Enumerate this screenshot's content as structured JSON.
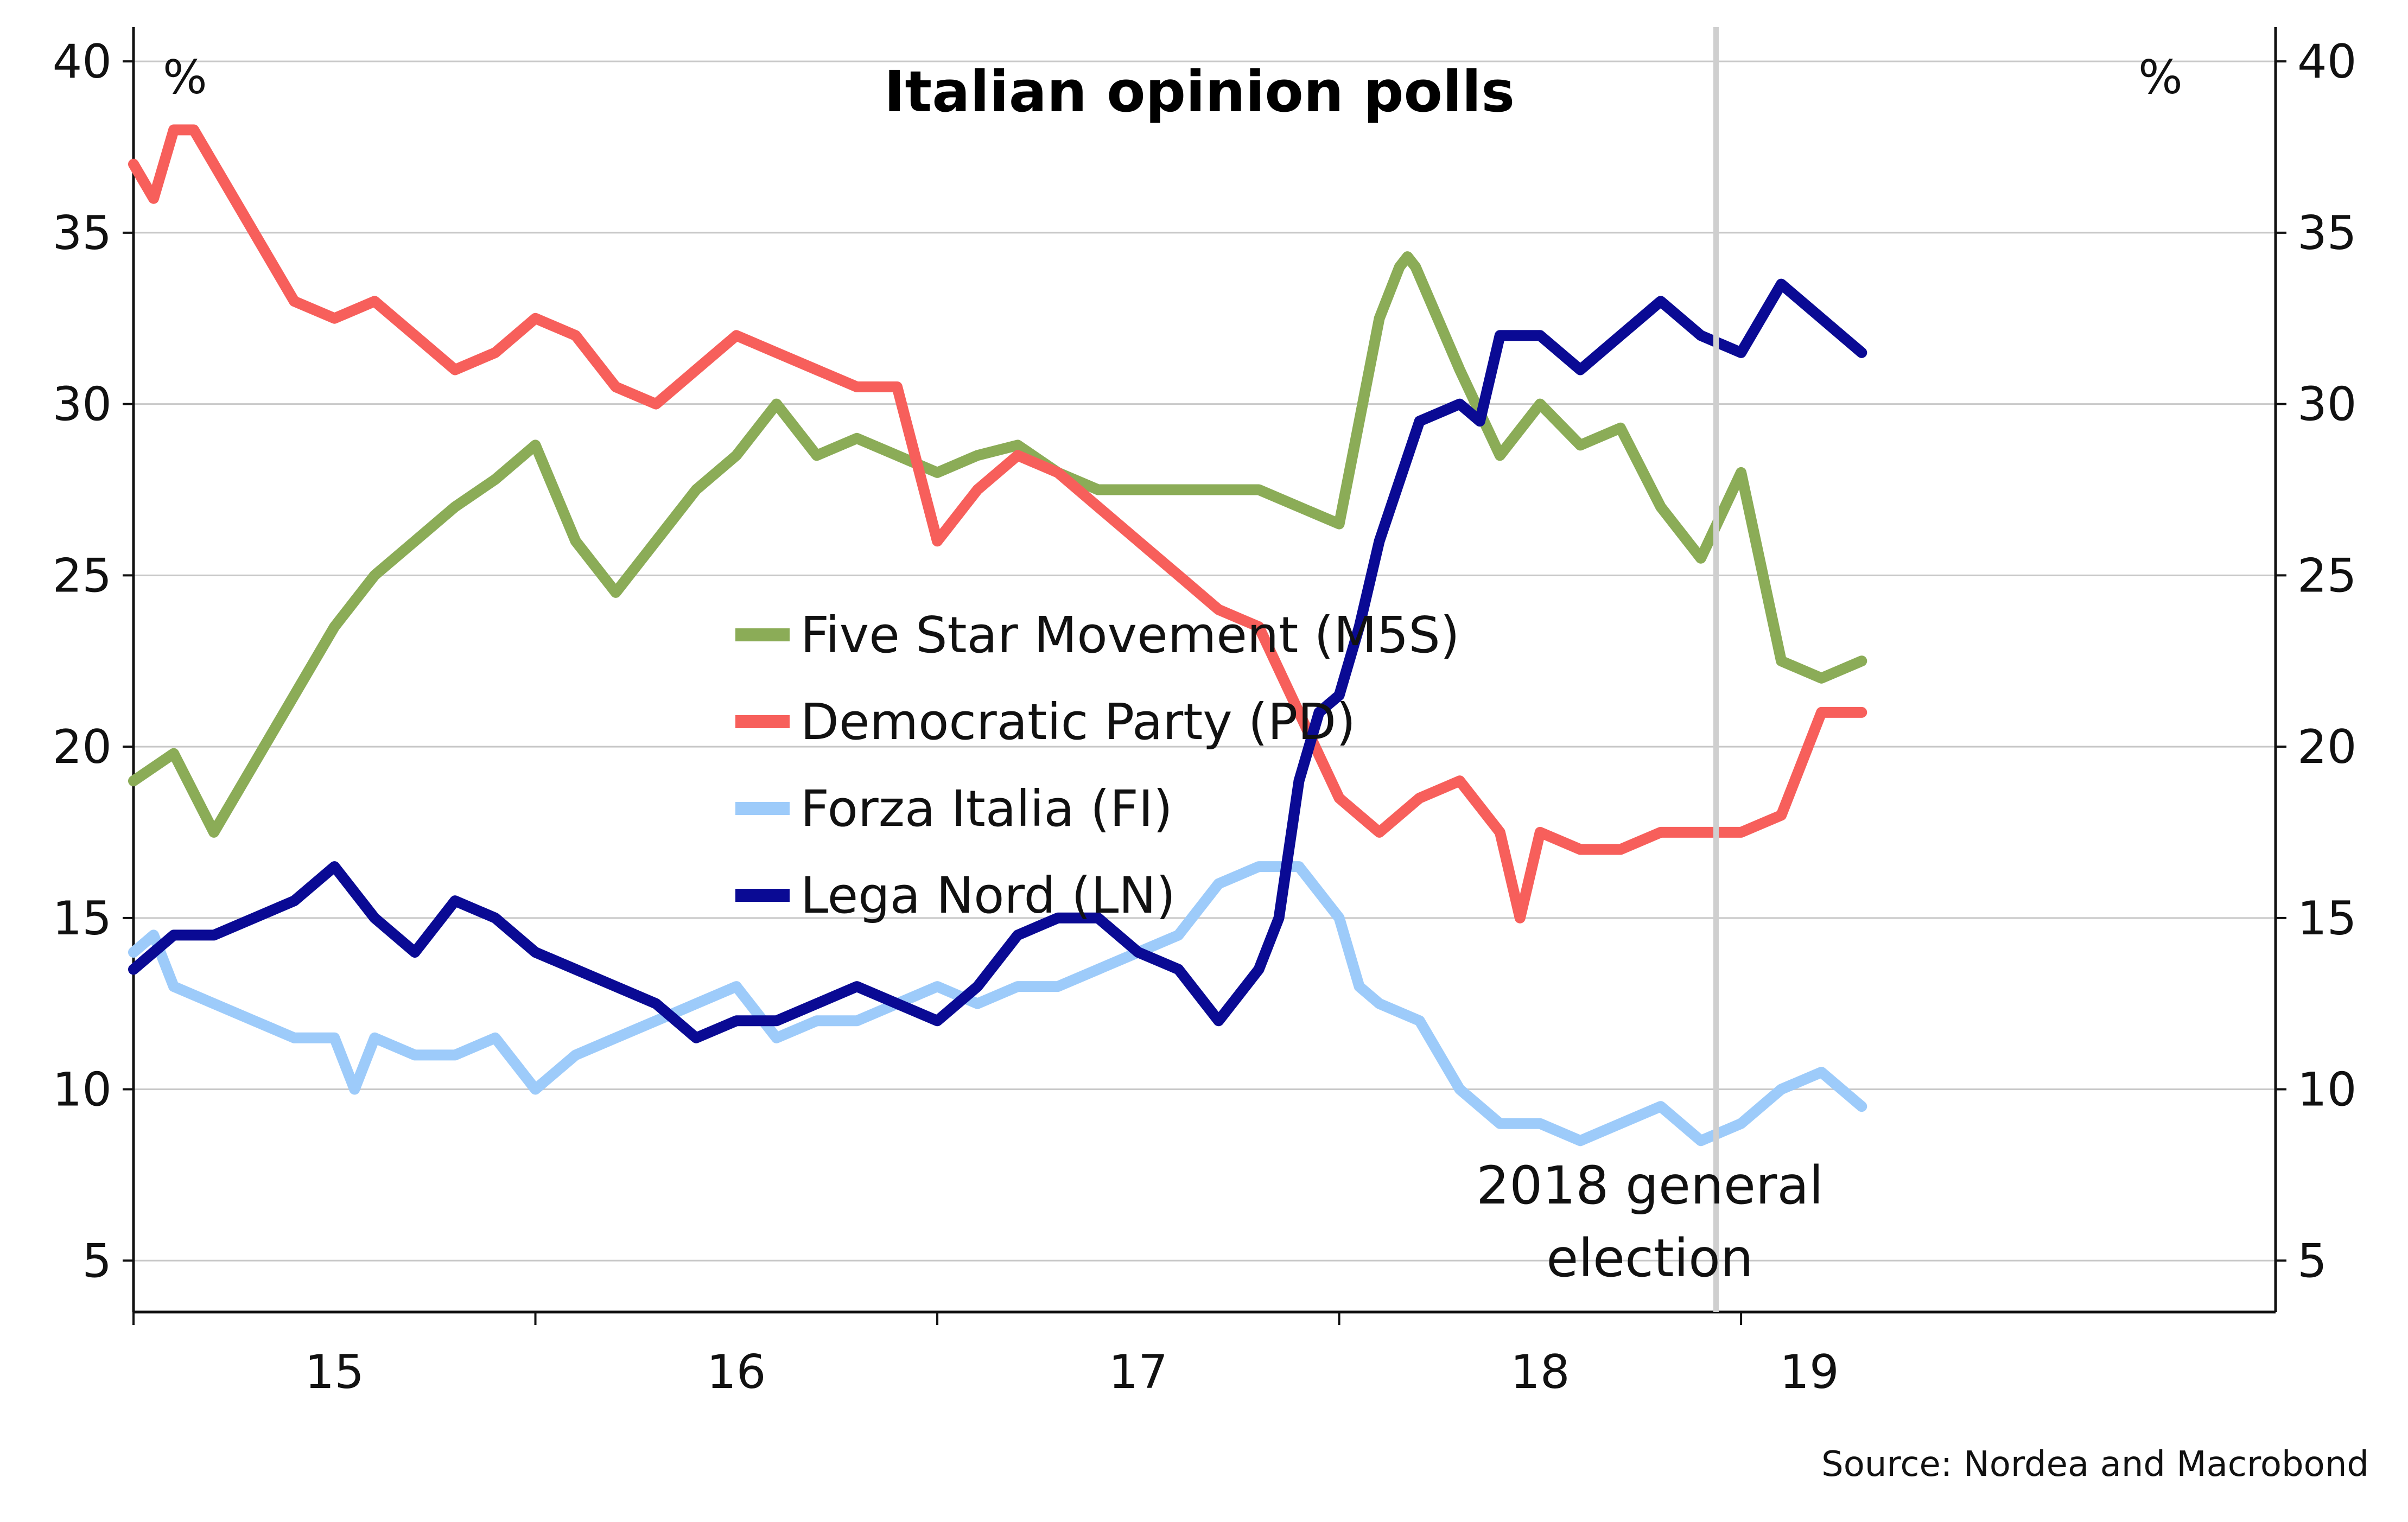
{
  "chart_data": {
    "type": "line",
    "title": "Italian opinion polls",
    "source": "Source: Nordea and Macrobond",
    "y_unit_left": "%",
    "y_unit_right": "%",
    "ylim": [
      3.5,
      41
    ],
    "yticks": [
      5,
      10,
      15,
      20,
      25,
      30,
      35,
      40
    ],
    "xlim": [
      2014.0,
      2019.33
    ],
    "x_major_ticks": [
      2014.0,
      2015.0,
      2016.0,
      2017.0,
      2018.0
    ],
    "x_tick_labels": [
      {
        "label": "15",
        "x": 2014.5
      },
      {
        "label": "16",
        "x": 2015.5
      },
      {
        "label": "17",
        "x": 2016.5
      },
      {
        "label": "18",
        "x": 2017.5
      },
      {
        "label": "19",
        "x": 2018.17
      }
    ],
    "grid": true,
    "legend_position": "center",
    "annotation": {
      "lines": [
        "2018 general",
        "election"
      ],
      "x": 2018.17
    },
    "series": [
      {
        "name": "Five Star Movement (M5S)",
        "color": "#8bac57",
        "x": [
          2014.0,
          2014.1,
          2014.2,
          2014.3,
          2014.4,
          2014.5,
          2014.6,
          2014.7,
          2014.8,
          2014.9,
          2015.0,
          2015.1,
          2015.2,
          2015.3,
          2015.4,
          2015.5,
          2015.6,
          2015.7,
          2015.8,
          2015.9,
          2016.0,
          2016.1,
          2016.2,
          2016.3,
          2016.4,
          2016.5,
          2016.6,
          2016.7,
          2016.8,
          2016.9,
          2017.0,
          2017.1,
          2017.15,
          2017.17,
          2017.19,
          2017.3,
          2017.4,
          2017.5,
          2017.6,
          2017.7,
          2017.8,
          2017.9,
          2018.0,
          2018.1,
          2018.2,
          2018.3
        ],
        "values": [
          19,
          19.8,
          17.5,
          19.5,
          21.5,
          23.5,
          25,
          26,
          27,
          27.8,
          28.8,
          26,
          24.5,
          26,
          27.5,
          28.5,
          30,
          28.5,
          29,
          28.5,
          28,
          28.5,
          28.8,
          28,
          27.5,
          27.5,
          27.5,
          27.5,
          27.5,
          27,
          26.5,
          32.5,
          34,
          34.3,
          34,
          31,
          28.5,
          30,
          28.8,
          29.3,
          27,
          25.5,
          28,
          22.5,
          22,
          22.5
        ]
      },
      {
        "name": "Democratic Party (PD)",
        "color": "#f75f5b",
        "x": [
          2014.0,
          2014.05,
          2014.1,
          2014.15,
          2014.2,
          2014.3,
          2014.4,
          2014.5,
          2014.6,
          2014.7,
          2014.8,
          2014.9,
          2015.0,
          2015.1,
          2015.2,
          2015.3,
          2015.4,
          2015.5,
          2015.6,
          2015.7,
          2015.8,
          2015.9,
          2016.0,
          2016.1,
          2016.2,
          2016.3,
          2016.4,
          2016.5,
          2016.6,
          2016.7,
          2016.8,
          2016.9,
          2017.0,
          2017.05,
          2017.1,
          2017.2,
          2017.3,
          2017.4,
          2017.45,
          2017.5,
          2017.6,
          2017.7,
          2017.8,
          2017.9,
          2018.0,
          2018.1,
          2018.2,
          2018.3
        ],
        "values": [
          37,
          36,
          38,
          38,
          37,
          35,
          33,
          32.5,
          33,
          32,
          31,
          31.5,
          32.5,
          32,
          30.5,
          30,
          31,
          32,
          31.5,
          31,
          30.5,
          30.5,
          26,
          27.5,
          28.5,
          28,
          27,
          26,
          25,
          24,
          23.5,
          21,
          18.5,
          18,
          17.5,
          18.5,
          19,
          17.5,
          15,
          17.5,
          17,
          17,
          17.5,
          17.5,
          17.5,
          18,
          21,
          21
        ]
      },
      {
        "name": "Forza Italia (FI)",
        "color": "#9dcbfa",
        "x": [
          2014.0,
          2014.05,
          2014.1,
          2014.2,
          2014.3,
          2014.4,
          2014.5,
          2014.55,
          2014.6,
          2014.7,
          2014.8,
          2014.9,
          2015.0,
          2015.1,
          2015.2,
          2015.3,
          2015.4,
          2015.5,
          2015.6,
          2015.7,
          2015.8,
          2015.9,
          2016.0,
          2016.1,
          2016.2,
          2016.3,
          2016.4,
          2016.5,
          2016.6,
          2016.7,
          2016.8,
          2016.9,
          2017.0,
          2017.05,
          2017.1,
          2017.2,
          2017.3,
          2017.4,
          2017.5,
          2017.6,
          2017.7,
          2017.8,
          2017.9,
          2018.0,
          2018.1,
          2018.2,
          2018.3
        ],
        "values": [
          14,
          14.5,
          13,
          12.5,
          12,
          11.5,
          11.5,
          10,
          11.5,
          11,
          11,
          11.5,
          10,
          11,
          11.5,
          12,
          12.5,
          13,
          11.5,
          12,
          12,
          12.5,
          13,
          12.5,
          13,
          13,
          13.5,
          14,
          14.5,
          16,
          16.5,
          16.5,
          15,
          13,
          12.5,
          12,
          10,
          9,
          9,
          8.5,
          9,
          9.5,
          8.5,
          9,
          10,
          10.5,
          9.5
        ]
      },
      {
        "name": "Lega Nord (LN)",
        "color": "#0a0a94",
        "x": [
          2014.0,
          2014.1,
          2014.2,
          2014.3,
          2014.4,
          2014.5,
          2014.6,
          2014.7,
          2014.8,
          2014.9,
          2015.0,
          2015.1,
          2015.2,
          2015.3,
          2015.4,
          2015.5,
          2015.6,
          2015.7,
          2015.8,
          2015.9,
          2016.0,
          2016.1,
          2016.2,
          2016.3,
          2016.4,
          2016.5,
          2016.6,
          2016.7,
          2016.8,
          2016.85,
          2016.9,
          2016.95,
          2017.0,
          2017.05,
          2017.1,
          2017.2,
          2017.3,
          2017.35,
          2017.4,
          2017.5,
          2017.6,
          2017.7,
          2017.8,
          2017.9,
          2018.0,
          2018.1,
          2018.2,
          2018.3
        ],
        "values": [
          13.5,
          14.5,
          14.5,
          15,
          15.5,
          16.5,
          15,
          14,
          15.5,
          15,
          14,
          13.5,
          13,
          12.5,
          11.5,
          12,
          12,
          12.5,
          13,
          12.5,
          12,
          13,
          14.5,
          15,
          15,
          14,
          13.5,
          12,
          13.5,
          15,
          19,
          21,
          21.5,
          23.5,
          26,
          29.5,
          30,
          29.5,
          32,
          32,
          31,
          32,
          33,
          32,
          31.5,
          33.5,
          32.5,
          31.5
        ]
      }
    ]
  }
}
